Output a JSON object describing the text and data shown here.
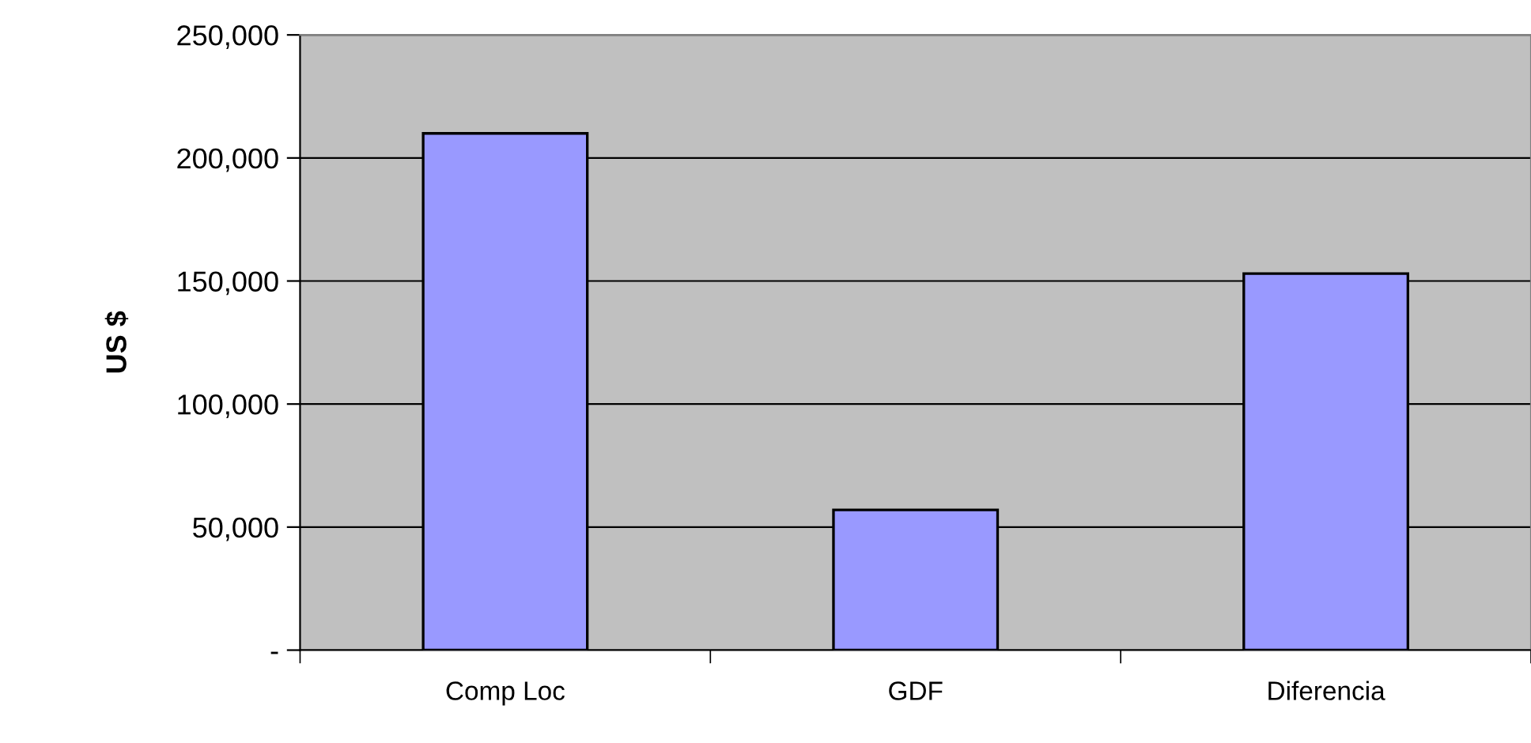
{
  "chart_data": {
    "type": "bar",
    "ylabel": "US $",
    "categories": [
      "Comp Loc",
      "GDF",
      "Diferencia"
    ],
    "series": [
      {
        "color": "#9999ff",
        "values": [
          210000,
          57000,
          153000
        ]
      }
    ],
    "ylim": [
      0,
      250000
    ],
    "yticks": [
      {
        "value": 0,
        "label": "-"
      },
      {
        "value": 50000,
        "label": "50,000"
      },
      {
        "value": 100000,
        "label": "100,000"
      },
      {
        "value": 150000,
        "label": "150,000"
      },
      {
        "value": 200000,
        "label": "200,000"
      },
      {
        "value": 250000,
        "label": "250,000"
      }
    ],
    "grid": "y",
    "legend": false
  }
}
